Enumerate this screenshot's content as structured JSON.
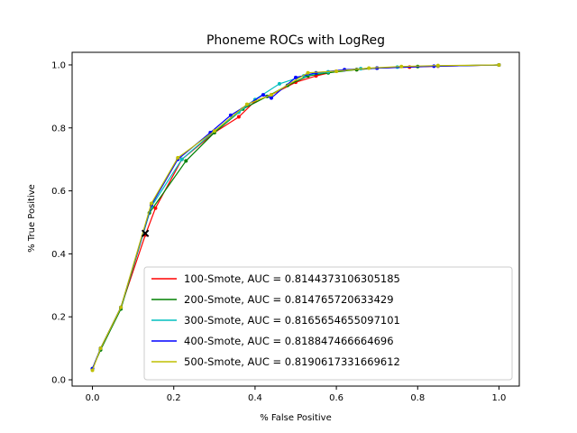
{
  "chart_data": {
    "type": "line",
    "title": "Phoneme ROCs with LogReg",
    "xlabel": "% False Positive",
    "ylabel": "% True Positive",
    "xlim": [
      -0.05,
      1.05
    ],
    "ylim": [
      -0.02,
      1.04
    ],
    "xticks": [
      "0.0",
      "0.2",
      "0.4",
      "0.6",
      "0.8",
      "1.0"
    ],
    "yticks": [
      "0.0",
      "0.2",
      "0.4",
      "0.6",
      "0.8",
      "1.0"
    ],
    "grid": false,
    "legend_position": "lower-right",
    "series": [
      {
        "name": "100-Smote, AUC = 0.8144373106305185",
        "color": "#ff0000",
        "points": [
          [
            0,
            0.035
          ],
          [
            0.02,
            0.1
          ],
          [
            0.07,
            0.23
          ],
          [
            0.13,
            0.46
          ],
          [
            0.155,
            0.545
          ],
          [
            0.22,
            0.7
          ],
          [
            0.3,
            0.785
          ],
          [
            0.36,
            0.835
          ],
          [
            0.4,
            0.885
          ],
          [
            0.44,
            0.905
          ],
          [
            0.5,
            0.945
          ],
          [
            0.55,
            0.965
          ],
          [
            0.6,
            0.98
          ],
          [
            0.65,
            0.985
          ],
          [
            0.7,
            0.99
          ],
          [
            0.78,
            0.993
          ],
          [
            0.85,
            0.996
          ],
          [
            1.0,
            1.0
          ]
        ]
      },
      {
        "name": "200-Smote, AUC = 0.814765720633429",
        "color": "#008000",
        "points": [
          [
            0,
            0.035
          ],
          [
            0.02,
            0.095
          ],
          [
            0.07,
            0.225
          ],
          [
            0.14,
            0.53
          ],
          [
            0.23,
            0.695
          ],
          [
            0.3,
            0.785
          ],
          [
            0.37,
            0.86
          ],
          [
            0.43,
            0.9
          ],
          [
            0.48,
            0.935
          ],
          [
            0.53,
            0.965
          ],
          [
            0.58,
            0.975
          ],
          [
            0.65,
            0.985
          ],
          [
            0.7,
            0.99
          ],
          [
            0.8,
            0.995
          ],
          [
            1.0,
            1.0
          ]
        ]
      },
      {
        "name": "300-Smote, AUC = 0.8165654655097101",
        "color": "#00bfbf",
        "points": [
          [
            0,
            0.035
          ],
          [
            0.02,
            0.1
          ],
          [
            0.07,
            0.23
          ],
          [
            0.145,
            0.55
          ],
          [
            0.22,
            0.7
          ],
          [
            0.3,
            0.79
          ],
          [
            0.36,
            0.85
          ],
          [
            0.4,
            0.89
          ],
          [
            0.46,
            0.94
          ],
          [
            0.52,
            0.965
          ],
          [
            0.58,
            0.978
          ],
          [
            0.66,
            0.988
          ],
          [
            0.75,
            0.993
          ],
          [
            0.85,
            0.997
          ],
          [
            1.0,
            1.0
          ]
        ]
      },
      {
        "name": "400-Smote, AUC = 0.818847466664696",
        "color": "#0000ff",
        "points": [
          [
            0,
            0.035
          ],
          [
            0.02,
            0.1
          ],
          [
            0.07,
            0.23
          ],
          [
            0.145,
            0.555
          ],
          [
            0.21,
            0.7
          ],
          [
            0.29,
            0.785
          ],
          [
            0.34,
            0.84
          ],
          [
            0.42,
            0.905
          ],
          [
            0.44,
            0.895
          ],
          [
            0.5,
            0.96
          ],
          [
            0.55,
            0.975
          ],
          [
            0.62,
            0.985
          ],
          [
            0.7,
            0.99
          ],
          [
            0.84,
            0.996
          ],
          [
            1.0,
            1.0
          ]
        ]
      },
      {
        "name": "500-Smote, AUC = 0.8190617331669612",
        "color": "#bfbf00",
        "points": [
          [
            0,
            0.03
          ],
          [
            0.02,
            0.1
          ],
          [
            0.07,
            0.23
          ],
          [
            0.145,
            0.56
          ],
          [
            0.21,
            0.705
          ],
          [
            0.3,
            0.79
          ],
          [
            0.38,
            0.875
          ],
          [
            0.44,
            0.905
          ],
          [
            0.53,
            0.975
          ],
          [
            0.6,
            0.98
          ],
          [
            0.68,
            0.99
          ],
          [
            0.76,
            0.995
          ],
          [
            0.85,
            0.998
          ],
          [
            1.0,
            1.0
          ]
        ]
      }
    ],
    "marker": {
      "x": 0.13,
      "y": 0.465,
      "symbol": "x",
      "color": "#000000"
    }
  }
}
